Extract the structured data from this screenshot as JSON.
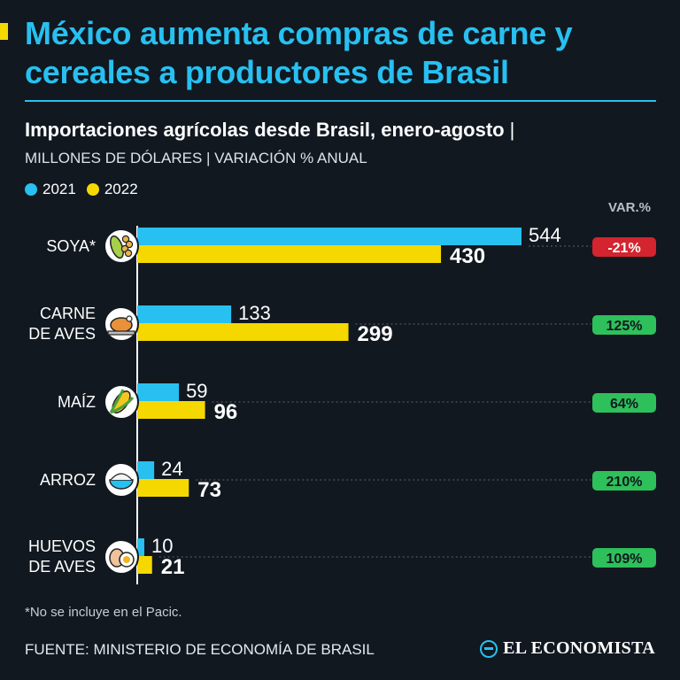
{
  "header": {
    "title": "México aumenta compras de carne y cereales a productores de Brasil",
    "subtitle": "Importaciones agrícolas desde Brasil, enero-agosto",
    "subtitle_pipe": "|",
    "units": "MILLONES DE DÓLARES | VARIACIÓN % ANUAL"
  },
  "colors": {
    "series_2021": "#27c0f0",
    "series_2022": "#f5d800",
    "positive": "#2ec05a",
    "negative": "#d3242f"
  },
  "chart_data": {
    "type": "bar",
    "orientation": "horizontal",
    "categories": [
      "SOYA*",
      "CARNE DE AVES",
      "MAÍZ",
      "ARROZ",
      "HUEVOS DE AVES"
    ],
    "category_lines": [
      [
        "SOYA*"
      ],
      [
        "CARNE",
        "DE AVES"
      ],
      [
        "MAÍZ"
      ],
      [
        "ARROZ"
      ],
      [
        "HUEVOS",
        "DE AVES"
      ]
    ],
    "icons": [
      "soybean-icon",
      "roast-chicken-icon",
      "corn-icon",
      "rice-bowl-icon",
      "eggs-icon"
    ],
    "series": [
      {
        "name": "2021",
        "values": [
          544,
          133,
          59,
          24,
          10
        ]
      },
      {
        "name": "2022",
        "values": [
          430,
          299,
          96,
          73,
          21
        ]
      }
    ],
    "variation_header": "VAR.%",
    "variation": [
      "-21%",
      "125%",
      "64%",
      "210%",
      "109%"
    ],
    "xlim": [
      0,
      544
    ]
  },
  "footer": {
    "footnote": "*No se incluye en el Pacic.",
    "source": "FUENTE: MINISTERIO DE ECONOMÍA DE BRASIL",
    "brand": "EL ECONOMISTA"
  }
}
